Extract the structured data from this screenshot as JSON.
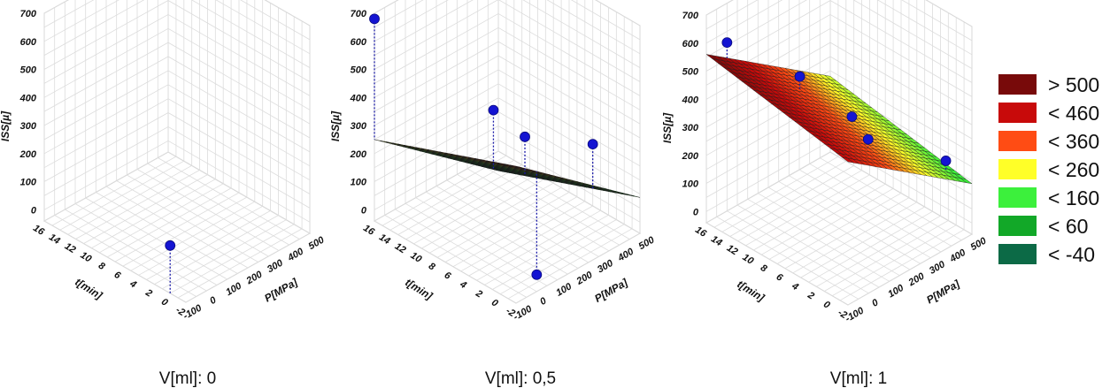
{
  "chart_data": [
    {
      "type": "surface3d",
      "caption": "V[ml]: 0",
      "xlabel": "P[MPa]",
      "ylabel": "t[min]",
      "zlabel": "ISS[µ]",
      "x_ticks": [
        "-100",
        "0",
        "100",
        "200",
        "300",
        "400",
        "500"
      ],
      "y_ticks": [
        "-2",
        "0",
        "2",
        "4",
        "6",
        "8",
        "10",
        "12",
        "14",
        "16"
      ],
      "z_ticks": [
        "0",
        "100",
        "200",
        "300",
        "400",
        "500",
        "600",
        "700"
      ],
      "xlim": [
        -100,
        500
      ],
      "ylim": [
        -2,
        16
      ],
      "zlim": [
        -40,
        700
      ],
      "surface": null,
      "points": [
        {
          "x": -100,
          "y": 0,
          "z": 130
        }
      ]
    },
    {
      "type": "surface3d",
      "caption": "V[ml]: 0,5",
      "xlabel": "P[MPa]",
      "ylabel": "t[min]",
      "zlabel": "ISS[µ]",
      "x_ticks": [
        "-100",
        "0",
        "100",
        "200",
        "300",
        "400",
        "500"
      ],
      "y_ticks": [
        "-2",
        "0",
        "2",
        "4",
        "6",
        "8",
        "10",
        "12",
        "14",
        "16"
      ],
      "z_ticks": [
        "0",
        "100",
        "200",
        "300",
        "400",
        "500",
        "600",
        "700"
      ],
      "xlim": [
        -100,
        500
      ],
      "ylim": [
        -2,
        16
      ],
      "zlim": [
        -40,
        700
      ],
      "surface": {
        "plane": [
          448,
          -0.6,
          -11
        ],
        "x_range": [
          -100,
          500
        ],
        "y_range": [
          -2,
          16
        ]
      },
      "points": [
        {
          "x": -100,
          "y": 16,
          "z": 680
        },
        {
          "x": 0,
          "y": -2,
          "z": 20
        },
        {
          "x": 400,
          "y": 14,
          "z": 180
        },
        {
          "x": 400,
          "y": 10,
          "z": 150
        },
        {
          "x": 500,
          "y": 4,
          "z": 180
        }
      ]
    },
    {
      "type": "surface3d",
      "caption": "V[ml]: 1",
      "xlabel": "P[MPa]",
      "ylabel": "t[min]",
      "zlabel": "ISS[µ]",
      "x_ticks": [
        "-100",
        "0",
        "100",
        "200",
        "300",
        "400",
        "500"
      ],
      "y_ticks": [
        "-2",
        "0",
        "2",
        "4",
        "6",
        "8",
        "10",
        "12",
        "14",
        "16"
      ],
      "z_ticks": [
        "0",
        "100",
        "200",
        "300",
        "400",
        "500",
        "600",
        "700"
      ],
      "xlim": [
        -100,
        500
      ],
      "ylim": [
        -2,
        16
      ],
      "zlim": [
        -40,
        700
      ],
      "surface": {
        "plane": [
          470,
          -0.55,
          5
        ],
        "x_range": [
          -100,
          500
        ],
        "y_range": [
          -2,
          16
        ]
      },
      "points": [
        {
          "x": 0,
          "y": 16,
          "z": 560
        },
        {
          "x": 200,
          "y": 12,
          "z": 420
        },
        {
          "x": 300,
          "y": 8,
          "z": 300
        },
        {
          "x": 150,
          "y": 2,
          "z": 380
        },
        {
          "x": 450,
          "y": 0,
          "z": 210
        }
      ]
    }
  ],
  "legend": [
    {
      "label": "> 500",
      "color": "#780a0a"
    },
    {
      "label": "< 460",
      "color": "#c80a0a"
    },
    {
      "label": "< 360",
      "color": "#ff4c14"
    },
    {
      "label": "< 260",
      "color": "#ffff28"
    },
    {
      "label": "< 160",
      "color": "#3cf03c"
    },
    {
      "label": "< 60",
      "color": "#12a828"
    },
    {
      "label": "< -40",
      "color": "#0c6a46"
    }
  ]
}
